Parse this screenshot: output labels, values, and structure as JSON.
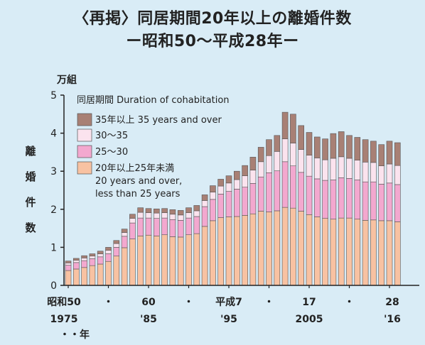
{
  "chart_data": {
    "type": "bar",
    "stacked": true,
    "title": "〈再掲〉同居期間20年以上の離婚件数",
    "subtitle": "ー昭和50〜平成28年ー",
    "unit": "万組",
    "ylabel": "離婚件数",
    "ylim": [
      0,
      5
    ],
    "yticks": [
      "0",
      "1",
      "2",
      "3",
      "4",
      "5"
    ],
    "legend_title": "同居期間 Duration of cohabitation",
    "x_tick_labels": [
      {
        "top": "昭和50",
        "bottom": "1975"
      },
      {
        "top": "・",
        "bottom": ""
      },
      {
        "top": "60",
        "bottom": "'85"
      },
      {
        "top": "・",
        "bottom": ""
      },
      {
        "top": "平成7",
        "bottom": "'95"
      },
      {
        "top": "・",
        "bottom": ""
      },
      {
        "top": "17",
        "bottom": "2005"
      },
      {
        "top": "・",
        "bottom": ""
      },
      {
        "top": "28",
        "bottom": "'16"
      }
    ],
    "x_axis_unit": "・・年",
    "categories": [
      "1975",
      "1976",
      "1977",
      "1978",
      "1979",
      "1980",
      "1981",
      "1982",
      "1983",
      "1984",
      "1985",
      "1986",
      "1987",
      "1988",
      "1989",
      "1990",
      "1991",
      "1992",
      "1993",
      "1994",
      "1995",
      "1996",
      "1997",
      "1998",
      "1999",
      "2000",
      "2001",
      "2002",
      "2003",
      "2004",
      "2005",
      "2006",
      "2007",
      "2008",
      "2009",
      "2010",
      "2011",
      "2012",
      "2013",
      "2014",
      "2015",
      "2016"
    ],
    "series": [
      {
        "name": "20年以上25年未満 20 years and over, less than 25 years",
        "color": "#f8c2a2",
        "values": [
          0.39,
          0.43,
          0.47,
          0.52,
          0.56,
          0.63,
          0.77,
          0.99,
          1.22,
          1.3,
          1.32,
          1.3,
          1.33,
          1.28,
          1.27,
          1.33,
          1.36,
          1.55,
          1.7,
          1.78,
          1.8,
          1.81,
          1.84,
          1.88,
          1.95,
          1.93,
          1.96,
          2.05,
          2.03,
          1.95,
          1.86,
          1.8,
          1.76,
          1.74,
          1.77,
          1.77,
          1.74,
          1.71,
          1.72,
          1.7,
          1.7,
          1.67
        ]
      },
      {
        "name": "25〜30",
        "color": "#f3a8cf",
        "values": [
          0.14,
          0.17,
          0.18,
          0.18,
          0.19,
          0.2,
          0.23,
          0.3,
          0.42,
          0.47,
          0.45,
          0.46,
          0.44,
          0.45,
          0.44,
          0.44,
          0.45,
          0.52,
          0.56,
          0.62,
          0.67,
          0.72,
          0.74,
          0.8,
          0.9,
          1.03,
          1.05,
          1.2,
          1.11,
          1.02,
          1.01,
          1.0,
          1.0,
          1.03,
          1.06,
          1.04,
          1.03,
          1.01,
          1.0,
          0.96,
          0.99,
          0.98
        ]
      },
      {
        "name": "30〜35",
        "color": "#fbe3ee",
        "values": [
          0.06,
          0.06,
          0.07,
          0.07,
          0.08,
          0.09,
          0.1,
          0.1,
          0.12,
          0.15,
          0.14,
          0.14,
          0.14,
          0.14,
          0.14,
          0.14,
          0.15,
          0.16,
          0.19,
          0.21,
          0.22,
          0.25,
          0.3,
          0.35,
          0.4,
          0.45,
          0.51,
          0.6,
          0.6,
          0.6,
          0.55,
          0.55,
          0.54,
          0.57,
          0.55,
          0.53,
          0.52,
          0.52,
          0.51,
          0.48,
          0.5,
          0.5
        ]
      },
      {
        "name": "35年以上 35 years and over",
        "color": "#a88075",
        "values": [
          0.05,
          0.05,
          0.06,
          0.06,
          0.07,
          0.08,
          0.08,
          0.09,
          0.11,
          0.12,
          0.11,
          0.11,
          0.11,
          0.12,
          0.12,
          0.13,
          0.14,
          0.15,
          0.17,
          0.18,
          0.19,
          0.22,
          0.27,
          0.34,
          0.38,
          0.42,
          0.42,
          0.7,
          0.76,
          0.63,
          0.6,
          0.55,
          0.55,
          0.65,
          0.66,
          0.6,
          0.6,
          0.59,
          0.56,
          0.56,
          0.6,
          0.6
        ]
      }
    ]
  }
}
